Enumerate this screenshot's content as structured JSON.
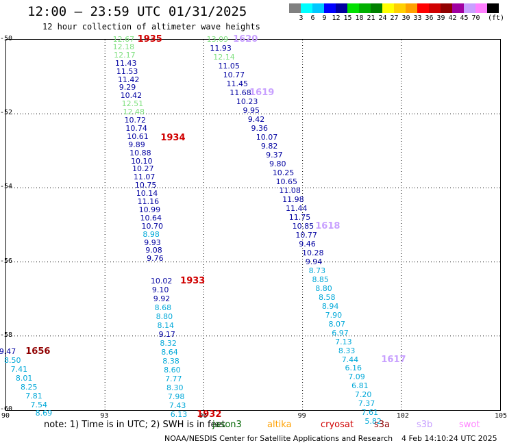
{
  "header": {
    "title": "12:00 — 23:59 UTC 01/31/2025",
    "subtitle": "12 hour collection of altimeter wave heights"
  },
  "scale": {
    "unit": "(ft)",
    "bins": [
      {
        "label": "",
        "color": "#808080"
      },
      {
        "label": "3",
        "color": "#00ffff"
      },
      {
        "label": "6",
        "color": "#00c8ff"
      },
      {
        "label": "9",
        "color": "#0000ff"
      },
      {
        "label": "12",
        "color": "#0000a0"
      },
      {
        "label": "15",
        "color": "#00e000"
      },
      {
        "label": "18",
        "color": "#00b000"
      },
      {
        "label": "21",
        "color": "#008000"
      },
      {
        "label": "24",
        "color": "#ffff00"
      },
      {
        "label": "27",
        "color": "#ffd000"
      },
      {
        "label": "30",
        "color": "#ffa000"
      },
      {
        "label": "33",
        "color": "#ff0000"
      },
      {
        "label": "36",
        "color": "#d00000"
      },
      {
        "label": "39",
        "color": "#900000"
      },
      {
        "label": "42",
        "color": "#a000a0"
      },
      {
        "label": "45",
        "color": "#c8a0ff"
      },
      {
        "label": "70",
        "color": "#ff80ff"
      },
      {
        "label": "",
        "color": "#000000"
      }
    ]
  },
  "axes": {
    "lat_labels": [
      "-50",
      "-52",
      "-54",
      "-56",
      "-58",
      "-60"
    ],
    "lon_labels": [
      "90",
      "93",
      "96",
      "99",
      "102",
      "105"
    ]
  },
  "tracks": [
    {
      "points": [
        {
          "t": "12.67",
          "c": "#7fe07f",
          "lon": 93.55,
          "lat": -50.02
        },
        {
          "t": "12.18",
          "c": "#7fe07f",
          "lon": 93.55,
          "lat": -50.22
        },
        {
          "t": "12.17",
          "c": "#7fe07f",
          "lon": 93.58,
          "lat": -50.44
        },
        {
          "t": "11.43",
          "c": "#0000a0",
          "lon": 93.62,
          "lat": -50.66
        },
        {
          "t": "11.53",
          "c": "#0000a0",
          "lon": 93.66,
          "lat": -50.88
        },
        {
          "t": "11.42",
          "c": "#0000a0",
          "lon": 93.7,
          "lat": -51.1
        },
        {
          "t": "9.29",
          "c": "#0000a0",
          "lon": 93.74,
          "lat": -51.32
        },
        {
          "t": "10.42",
          "c": "#0000a0",
          "lon": 93.78,
          "lat": -51.54
        },
        {
          "t": "12.51",
          "c": "#7fe07f",
          "lon": 93.82,
          "lat": -51.76
        },
        {
          "t": "12.48",
          "c": "#7fe07f",
          "lon": 93.86,
          "lat": -51.98
        },
        {
          "t": "10.72",
          "c": "#0000a0",
          "lon": 93.9,
          "lat": -52.2
        },
        {
          "t": "10.74",
          "c": "#0000a0",
          "lon": 93.94,
          "lat": -52.42
        },
        {
          "t": "10.61",
          "c": "#0000a0",
          "lon": 93.98,
          "lat": -52.64
        },
        {
          "t": "9.89",
          "c": "#0000a0",
          "lon": 94.02,
          "lat": -52.86
        },
        {
          "t": "10.88",
          "c": "#0000a0",
          "lon": 94.06,
          "lat": -53.08
        },
        {
          "t": "10.10",
          "c": "#0000a0",
          "lon": 94.1,
          "lat": -53.3
        },
        {
          "t": "10.27",
          "c": "#0000a0",
          "lon": 94.14,
          "lat": -53.52
        },
        {
          "t": "11.07",
          "c": "#0000a0",
          "lon": 94.18,
          "lat": -53.74
        },
        {
          "t": "10.75",
          "c": "#0000a0",
          "lon": 94.22,
          "lat": -53.96
        },
        {
          "t": "10.14",
          "c": "#0000a0",
          "lon": 94.26,
          "lat": -54.18
        },
        {
          "t": "11.16",
          "c": "#0000a0",
          "lon": 94.3,
          "lat": -54.4
        },
        {
          "t": "10.99",
          "c": "#0000a0",
          "lon": 94.34,
          "lat": -54.62
        },
        {
          "t": "10.64",
          "c": "#0000a0",
          "lon": 94.38,
          "lat": -54.84
        },
        {
          "t": "10.70",
          "c": "#0000a0",
          "lon": 94.42,
          "lat": -55.06
        },
        {
          "t": "8.98",
          "c": "#00a8d8",
          "lon": 94.46,
          "lat": -55.28
        },
        {
          "t": "9.93",
          "c": "#0000a0",
          "lon": 94.5,
          "lat": -55.5
        },
        {
          "t": "9.08",
          "c": "#0000a0",
          "lon": 94.54,
          "lat": -55.72
        },
        {
          "t": "9.76",
          "c": "#0000a0",
          "lon": 94.58,
          "lat": -55.94
        }
      ],
      "labels": [
        {
          "t": "1935",
          "lon": 94.3,
          "lat": -50.02
        },
        {
          "t": "1934",
          "lon": 95.0,
          "lat": -52.68
        }
      ]
    },
    {
      "points": [
        {
          "t": "10.02",
          "c": "#0000a0",
          "lon": 94.7,
          "lat": -56.54
        },
        {
          "t": "9.10",
          "c": "#0000a0",
          "lon": 94.74,
          "lat": -56.78
        },
        {
          "t": "9.92",
          "c": "#0000a0",
          "lon": 94.78,
          "lat": -57.02
        },
        {
          "t": "8.68",
          "c": "#00a8d8",
          "lon": 94.82,
          "lat": -57.26
        },
        {
          "t": "8.80",
          "c": "#00a8d8",
          "lon": 94.86,
          "lat": -57.5
        },
        {
          "t": "8.14",
          "c": "#00a8d8",
          "lon": 94.9,
          "lat": -57.74
        },
        {
          "t": "9.17",
          "c": "#0000a0",
          "lon": 94.94,
          "lat": -57.98
        },
        {
          "t": "8.32",
          "c": "#00a8d8",
          "lon": 94.98,
          "lat": -58.22
        },
        {
          "t": "8.64",
          "c": "#00a8d8",
          "lon": 95.02,
          "lat": -58.46
        },
        {
          "t": "8.38",
          "c": "#00a8d8",
          "lon": 95.06,
          "lat": -58.7
        },
        {
          "t": "8.60",
          "c": "#00a8d8",
          "lon": 95.1,
          "lat": -58.94
        },
        {
          "t": "7.77",
          "c": "#00a8d8",
          "lon": 95.14,
          "lat": -59.18
        },
        {
          "t": "8.30",
          "c": "#00a8d8",
          "lon": 95.18,
          "lat": -59.42
        },
        {
          "t": "7.98",
          "c": "#00a8d8",
          "lon": 95.22,
          "lat": -59.66
        },
        {
          "t": "7.43",
          "c": "#00a8d8",
          "lon": 95.26,
          "lat": -59.9
        },
        {
          "t": "6.13",
          "c": "#00a8d8",
          "lon": 95.3,
          "lat": -60.14
        }
      ],
      "labels": [
        {
          "t": "1933",
          "lon": 95.6,
          "lat": -56.54
        },
        {
          "t": "1932",
          "lon": 96.1,
          "lat": -60.14
        }
      ]
    },
    {
      "points": [
        {
          "t": "13.09",
          "c": "#7fe07f",
          "lon": 96.4,
          "lat": -50.02
        },
        {
          "t": "11.93",
          "c": "#0000a0",
          "lon": 96.5,
          "lat": -50.26
        },
        {
          "t": "12.14",
          "c": "#7fe07f",
          "lon": 96.6,
          "lat": -50.5
        },
        {
          "t": "11.05",
          "c": "#0000a0",
          "lon": 96.75,
          "lat": -50.74
        },
        {
          "t": "10.77",
          "c": "#0000a0",
          "lon": 96.9,
          "lat": -50.98
        },
        {
          "t": "11.45",
          "c": "#0000a0",
          "lon": 97.0,
          "lat": -51.22
        },
        {
          "t": "11.68",
          "c": "#0000a0",
          "lon": 97.1,
          "lat": -51.46
        },
        {
          "t": "10.23",
          "c": "#0000a0",
          "lon": 97.3,
          "lat": -51.7
        },
        {
          "t": "9.95",
          "c": "#0000a0",
          "lon": 97.5,
          "lat": -51.94
        },
        {
          "t": "9.42",
          "c": "#0000a0",
          "lon": 97.65,
          "lat": -52.18
        },
        {
          "t": "9.36",
          "c": "#0000a0",
          "lon": 97.75,
          "lat": -52.42
        },
        {
          "t": "10.07",
          "c": "#0000a0",
          "lon": 97.9,
          "lat": -52.66
        },
        {
          "t": "9.82",
          "c": "#0000a0",
          "lon": 98.05,
          "lat": -52.9
        },
        {
          "t": "9.37",
          "c": "#0000a0",
          "lon": 98.2,
          "lat": -53.14
        },
        {
          "t": "9.80",
          "c": "#0000a0",
          "lon": 98.3,
          "lat": -53.38
        },
        {
          "t": "10.25",
          "c": "#0000a0",
          "lon": 98.4,
          "lat": -53.62
        },
        {
          "t": "10.65",
          "c": "#0000a0",
          "lon": 98.5,
          "lat": -53.86
        },
        {
          "t": "11.08",
          "c": "#0000a0",
          "lon": 98.6,
          "lat": -54.1
        },
        {
          "t": "11.98",
          "c": "#0000a0",
          "lon": 98.7,
          "lat": -54.34
        },
        {
          "t": "11.44",
          "c": "#0000a0",
          "lon": 98.8,
          "lat": -54.58
        },
        {
          "t": "11.75",
          "c": "#0000a0",
          "lon": 98.9,
          "lat": -54.82
        },
        {
          "t": "10.85",
          "c": "#0000a0",
          "lon": 99.0,
          "lat": -55.06
        },
        {
          "t": "10.77",
          "c": "#0000a0",
          "lon": 99.1,
          "lat": -55.3
        },
        {
          "t": "9.46",
          "c": "#0000a0",
          "lon": 99.2,
          "lat": -55.54
        },
        {
          "t": "10.28",
          "c": "#0000a0",
          "lon": 99.3,
          "lat": -55.78
        },
        {
          "t": "9.94",
          "c": "#0000a0",
          "lon": 99.4,
          "lat": -56.02
        },
        {
          "t": "8.73",
          "c": "#00a8d8",
          "lon": 99.5,
          "lat": -56.26
        },
        {
          "t": "8.85",
          "c": "#00a8d8",
          "lon": 99.6,
          "lat": -56.5
        },
        {
          "t": "8.80",
          "c": "#00a8d8",
          "lon": 99.7,
          "lat": -56.74
        },
        {
          "t": "8.58",
          "c": "#00a8d8",
          "lon": 99.8,
          "lat": -56.98
        },
        {
          "t": "8.94",
          "c": "#00a8d8",
          "lon": 99.9,
          "lat": -57.22
        },
        {
          "t": "7.90",
          "c": "#00a8d8",
          "lon": 100.0,
          "lat": -57.46
        },
        {
          "t": "8.07",
          "c": "#00a8d8",
          "lon": 100.1,
          "lat": -57.7
        },
        {
          "t": "6.97",
          "c": "#00a8d8",
          "lon": 100.2,
          "lat": -57.94
        },
        {
          "t": "7.13",
          "c": "#00a8d8",
          "lon": 100.3,
          "lat": -58.18
        },
        {
          "t": "8.33",
          "c": "#00a8d8",
          "lon": 100.4,
          "lat": -58.42
        },
        {
          "t": "7.44",
          "c": "#00a8d8",
          "lon": 100.5,
          "lat": -58.66
        },
        {
          "t": "6.16",
          "c": "#00a8d8",
          "lon": 100.6,
          "lat": -58.9
        },
        {
          "t": "7.09",
          "c": "#00a8d8",
          "lon": 100.7,
          "lat": -59.14
        },
        {
          "t": "6.81",
          "c": "#00a8d8",
          "lon": 100.8,
          "lat": -59.38
        },
        {
          "t": "7.20",
          "c": "#00a8d8",
          "lon": 100.9,
          "lat": -59.62
        },
        {
          "t": "7.37",
          "c": "#00a8d8",
          "lon": 101.0,
          "lat": -59.86
        },
        {
          "t": "7.61",
          "c": "#00a8d8",
          "lon": 101.1,
          "lat": -60.1
        },
        {
          "t": "5.82",
          "c": "#00a8d8",
          "lon": 101.2,
          "lat": -60.34
        }
      ],
      "labels": [
        {
          "t": "1620",
          "lon": 97.2,
          "lat": -50.02
        },
        {
          "t": "1619",
          "lon": 97.7,
          "lat": -51.46
        },
        {
          "t": "1618",
          "lon": 99.7,
          "lat": -55.06
        },
        {
          "t": "1617",
          "lon": 101.7,
          "lat": -58.66
        }
      ],
      "label_color": "#c8a0ff"
    },
    {
      "points": [
        {
          "t": "9.47",
          "c": "#0000a0",
          "lon": 90.1,
          "lat": -58.45
        },
        {
          "t": "8.50",
          "c": "#00a8d8",
          "lon": 90.25,
          "lat": -58.68
        },
        {
          "t": "7.41",
          "c": "#00a8d8",
          "lon": 90.45,
          "lat": -58.92
        },
        {
          "t": "8.01",
          "c": "#00a8d8",
          "lon": 90.6,
          "lat": -59.16
        },
        {
          "t": "8.25",
          "c": "#00a8d8",
          "lon": 90.75,
          "lat": -59.4
        },
        {
          "t": "7.81",
          "c": "#00a8d8",
          "lon": 90.9,
          "lat": -59.64
        },
        {
          "t": "7.54",
          "c": "#00a8d8",
          "lon": 91.05,
          "lat": -59.88
        },
        {
          "t": "8.69",
          "c": "#00a8d8",
          "lon": 91.2,
          "lat": -60.12
        }
      ],
      "labels": [
        {
          "t": "1656",
          "lon": 90.9,
          "lat": -58.45
        }
      ],
      "label_color": "#900000"
    }
  ],
  "note": "note: 1) Time is in UTC; 2) SWH is in feet",
  "satellites": [
    {
      "name": "jason3",
      "color": "#006400"
    },
    {
      "name": "altika",
      "color": "#ffa000"
    },
    {
      "name": "cryosat",
      "color": "#d00000"
    },
    {
      "name": "s3a",
      "color": "#900000"
    },
    {
      "name": "s3b",
      "color": "#c8a0ff"
    },
    {
      "name": "swot",
      "color": "#ff80ff"
    }
  ],
  "footer_left": "NOAA/NESDIS Center for Satellite Applications and Research",
  "footer_right": "4 Feb 14:10:24 UTC 2025"
}
